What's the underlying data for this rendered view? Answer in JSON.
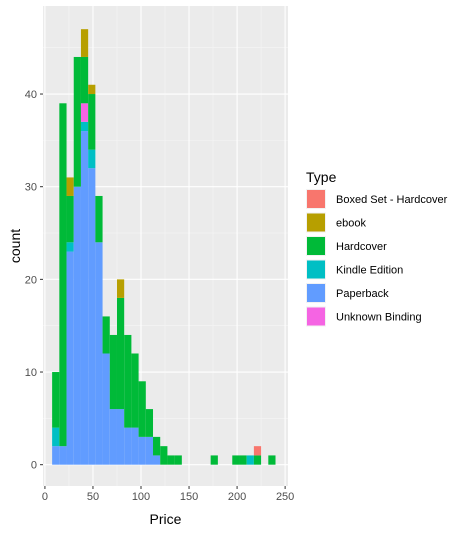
{
  "chart_data": {
    "type": "bar",
    "stacked": true,
    "binwidth": 7.5,
    "xlabel": "Price",
    "ylabel": "count",
    "xlim": [
      -2,
      253
    ],
    "ylim": [
      -2.3,
      49.5
    ],
    "x_ticks": [
      0,
      50,
      100,
      150,
      200,
      250
    ],
    "y_ticks": [
      0,
      10,
      20,
      30,
      40
    ],
    "grid": true,
    "background": "#ebebeb",
    "legend_placement": "right",
    "legend_title": "Type",
    "x": [
      11.25,
      18.75,
      26.25,
      33.75,
      41.25,
      48.75,
      56.25,
      63.75,
      71.25,
      78.75,
      86.25,
      93.75,
      101.25,
      108.75,
      116.25,
      123.75,
      131.25,
      138.75,
      176.25,
      198.75,
      206.25,
      213.75,
      221.25,
      236.25
    ],
    "series": [
      {
        "name": "Paperback",
        "color": "#619cff",
        "values": [
          2,
          2,
          23,
          30,
          36,
          32,
          24,
          12,
          6,
          6,
          4,
          4,
          3,
          3,
          1,
          0,
          0,
          0,
          0,
          0,
          0,
          0,
          0,
          0
        ]
      },
      {
        "name": "Kindle Edition",
        "color": "#00bfc4",
        "values": [
          2,
          0,
          1,
          0,
          1,
          2,
          0,
          0,
          0,
          0,
          0,
          0,
          0,
          0,
          0,
          0,
          0,
          0,
          0,
          0,
          0,
          1,
          0,
          0
        ]
      },
      {
        "name": "Unknown Binding",
        "color": "#f564e3",
        "values": [
          0,
          0,
          0,
          0,
          2,
          0,
          0,
          0,
          0,
          0,
          0,
          0,
          0,
          0,
          0,
          0,
          0,
          0,
          0,
          0,
          0,
          0,
          0,
          0
        ]
      },
      {
        "name": "Hardcover",
        "color": "#00ba38",
        "values": [
          6,
          37,
          5,
          14,
          5,
          6,
          5,
          4,
          8,
          12,
          10,
          8,
          6,
          3,
          2,
          2,
          1,
          1,
          1,
          1,
          1,
          0,
          1,
          1
        ]
      },
      {
        "name": "ebook",
        "color": "#b79f00",
        "values": [
          0,
          0,
          2,
          0,
          3,
          1,
          0,
          0,
          0,
          2,
          0,
          0,
          0,
          0,
          0,
          0,
          0,
          0,
          0,
          0,
          0,
          0,
          0,
          0
        ]
      },
      {
        "name": "Boxed Set - Hardcover",
        "color": "#f8766d",
        "values": [
          0,
          0,
          0,
          0,
          0,
          0,
          0,
          0,
          0,
          0,
          0,
          0,
          0,
          0,
          0,
          0,
          0,
          0,
          0,
          0,
          0,
          0,
          1,
          0
        ]
      }
    ]
  },
  "legend": {
    "title": "Type",
    "items": [
      {
        "label": "Boxed Set - Hardcover",
        "color": "#f8766d"
      },
      {
        "label": "ebook",
        "color": "#b79f00"
      },
      {
        "label": "Hardcover",
        "color": "#00ba38"
      },
      {
        "label": "Kindle Edition",
        "color": "#00bfc4"
      },
      {
        "label": "Paperback",
        "color": "#619cff"
      },
      {
        "label": "Unknown Binding",
        "color": "#f564e3"
      }
    ]
  }
}
